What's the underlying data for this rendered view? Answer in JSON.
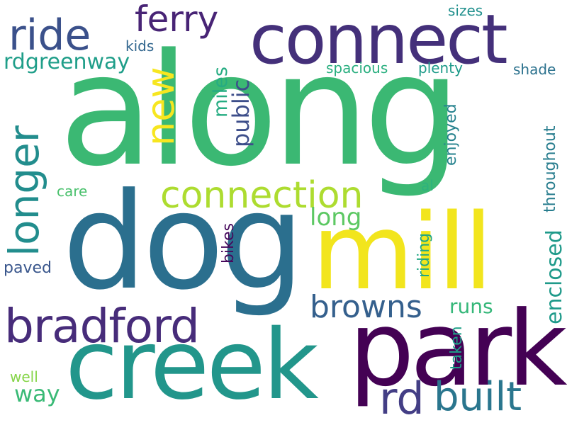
{
  "words": [
    {
      "text": "along",
      "color": "#3bb873"
    },
    {
      "text": "dog",
      "color": "#2b6f8e"
    },
    {
      "text": "connect",
      "color": "#44307a"
    },
    {
      "text": "mill",
      "color": "#f2e51d"
    },
    {
      "text": "park",
      "color": "#440154"
    },
    {
      "text": "creek",
      "color": "#22968b"
    },
    {
      "text": "bradford",
      "color": "#472c7a"
    },
    {
      "text": "connection",
      "color": "#addc30"
    },
    {
      "text": "ride",
      "color": "#3b518b"
    },
    {
      "text": "ferry",
      "color": "#482475"
    },
    {
      "text": "longer",
      "color": "#228d8d"
    },
    {
      "text": "new",
      "color": "#f7e620"
    },
    {
      "text": "browns",
      "color": "#35608d"
    },
    {
      "text": "rd",
      "color": "#433e85"
    },
    {
      "text": "built",
      "color": "#2a768e"
    },
    {
      "text": "rdgreenway",
      "color": "#1f9e89"
    },
    {
      "text": "miles",
      "color": "#25ac82"
    },
    {
      "text": "public",
      "color": "#3d4e8a"
    },
    {
      "text": "long",
      "color": "#5cc863"
    },
    {
      "text": "enclosed",
      "color": "#1f9a8a"
    },
    {
      "text": "runs",
      "color": "#35b779"
    },
    {
      "text": "way",
      "color": "#3aba76"
    },
    {
      "text": "throughout",
      "color": "#287d8e"
    },
    {
      "text": "enjoyed",
      "color": "#26828e"
    },
    {
      "text": "riding",
      "color": "#21a685"
    },
    {
      "text": "taken",
      "color": "#1f9f88"
    },
    {
      "text": "bikes",
      "color": "#46085c"
    },
    {
      "text": "spacious",
      "color": "#29af7f"
    },
    {
      "text": "plenty",
      "color": "#1e9b8a"
    },
    {
      "text": "shade",
      "color": "#2c728e"
    },
    {
      "text": "sizes",
      "color": "#21908d"
    },
    {
      "text": "kids",
      "color": "#31668e"
    },
    {
      "text": "care",
      "color": "#4ac16d"
    },
    {
      "text": "al",
      "color": "#2db27d"
    },
    {
      "text": "paved",
      "color": "#39568c"
    },
    {
      "text": "well",
      "color": "#86d549"
    }
  ]
}
